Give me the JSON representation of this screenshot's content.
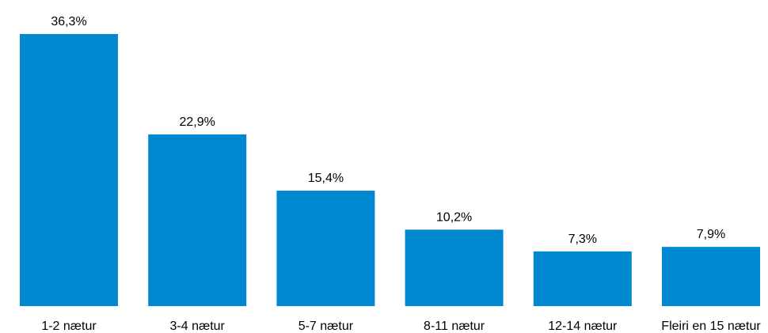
{
  "chart_data": {
    "type": "bar",
    "categories": [
      "1-2 nætur",
      "3-4 nætur",
      "5-7 nætur",
      "8-11 nætur",
      "12-14 nætur",
      "Fleiri en 15 nætur"
    ],
    "values": [
      36.3,
      22.9,
      15.4,
      10.2,
      7.3,
      7.9
    ],
    "value_labels": [
      "36,3%",
      "22,9%",
      "15,4%",
      "10,2%",
      "7,3%",
      "7,9%"
    ],
    "title": "",
    "xlabel": "",
    "ylabel": "",
    "ylim": [
      0,
      36.3
    ],
    "grid": false,
    "legend": "none",
    "bar_color": "#0088D1"
  }
}
